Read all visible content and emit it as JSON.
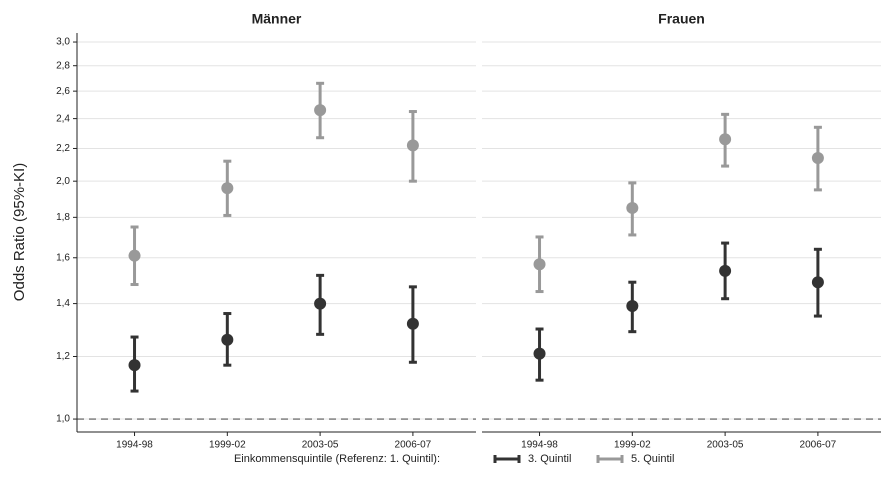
{
  "chart_data": [
    {
      "type": "errorbar",
      "title": "Männer",
      "y_label": "Odds Ratio (95%-KI)",
      "legend_title": "Einkommensquintile (Referenz: 1. Quintil):",
      "log_y": true,
      "grid": true,
      "reference_line": 1,
      "categories": [
        "1994-98",
        "1999-02",
        "2003-05",
        "2006-07"
      ],
      "ylim": [
        0.963,
        3.08
      ],
      "yticks": [
        {
          "value": 1,
          "label": "1,0"
        },
        {
          "value": 1.2,
          "label": "1,2"
        },
        {
          "value": 1.4,
          "label": "1,4"
        },
        {
          "value": 1.6,
          "label": "1,6"
        },
        {
          "value": 1.8,
          "label": "1,8"
        },
        {
          "value": 2,
          "label": "2,0"
        },
        {
          "value": 2.2,
          "label": "2,2"
        },
        {
          "value": 2.4,
          "label": "2,4"
        },
        {
          "value": 2.6,
          "label": "2,6"
        },
        {
          "value": 2.8,
          "label": "2,8"
        },
        {
          "value": 3,
          "label": "3,0"
        }
      ],
      "series": [
        {
          "name": "3. Quintil",
          "color": "#333333",
          "values": [
            1.17,
            1.26,
            1.4,
            1.32
          ],
          "lower": [
            1.085,
            1.17,
            1.28,
            1.18
          ],
          "upper": [
            1.27,
            1.36,
            1.52,
            1.47
          ]
        },
        {
          "name": "5. Quintil",
          "color": "#999999",
          "values": [
            1.61,
            1.96,
            2.46,
            2.22
          ],
          "lower": [
            1.48,
            1.81,
            2.27,
            2.0
          ],
          "upper": [
            1.75,
            2.12,
            2.66,
            2.45
          ]
        }
      ]
    },
    {
      "type": "errorbar",
      "title": "Frauen",
      "log_y": true,
      "grid": true,
      "reference_line": 1,
      "categories": [
        "1994-98",
        "1999-02",
        "2003-05",
        "2006-07"
      ],
      "ylim": [
        0.963,
        3.08
      ],
      "yticks": [
        1,
        1.2,
        1.4,
        1.6,
        1.8,
        2,
        2.2,
        2.4,
        2.6,
        2.8,
        3
      ],
      "series": [
        {
          "name": "3. Quintil",
          "color": "#333333",
          "values": [
            1.21,
            1.39,
            1.54,
            1.49
          ],
          "lower": [
            1.12,
            1.29,
            1.42,
            1.35
          ],
          "upper": [
            1.3,
            1.49,
            1.67,
            1.64
          ]
        },
        {
          "name": "5. Quintil",
          "color": "#999999",
          "values": [
            1.57,
            1.85,
            2.26,
            2.14
          ],
          "lower": [
            1.45,
            1.71,
            2.09,
            1.95
          ],
          "upper": [
            1.7,
            1.99,
            2.43,
            2.34
          ]
        }
      ]
    }
  ]
}
